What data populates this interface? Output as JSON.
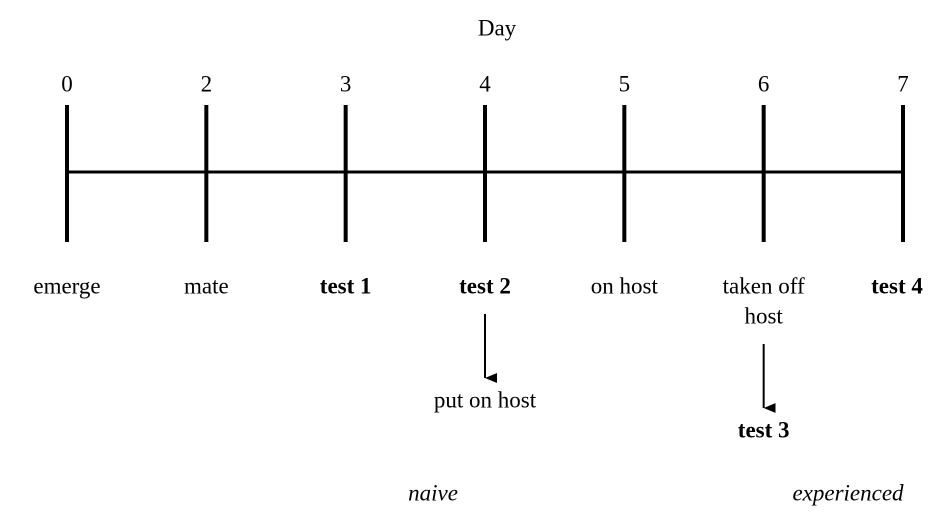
{
  "title": "Day",
  "days": [
    {
      "day": "0",
      "label": [
        "emerge"
      ],
      "bold": false
    },
    {
      "day": "2",
      "label": [
        "mate"
      ],
      "bold": false
    },
    {
      "day": "3",
      "label": [
        "test 1"
      ],
      "bold": true
    },
    {
      "day": "4",
      "label": [
        "test 2"
      ],
      "bold": true,
      "arrow": {
        "label": "put on host",
        "bold": false
      }
    },
    {
      "day": "5",
      "label": [
        "on host"
      ],
      "bold": false
    },
    {
      "day": "6",
      "label": [
        "taken off",
        "host"
      ],
      "bold": false,
      "arrow": {
        "label": "test 3",
        "bold": true
      }
    },
    {
      "day": "7",
      "label": [
        "test 4"
      ],
      "bold": true
    }
  ],
  "phases": [
    "naive",
    "experienced"
  ]
}
